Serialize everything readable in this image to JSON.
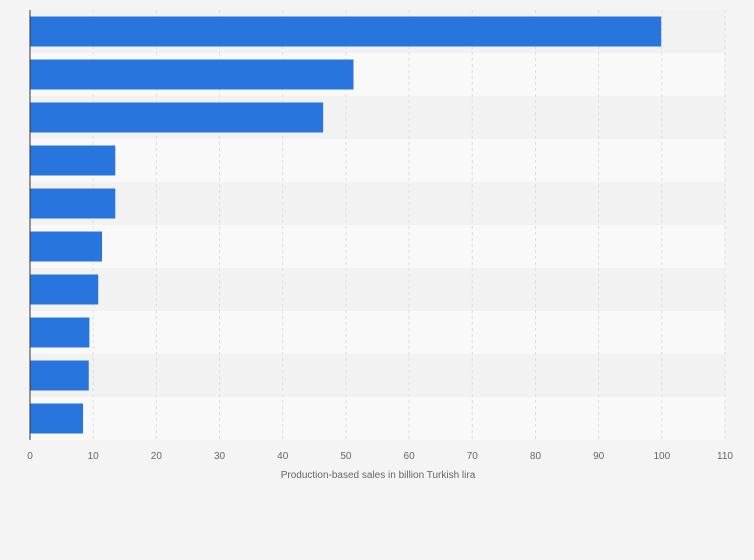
{
  "chart_data": {
    "type": "bar",
    "orientation": "horizontal",
    "categories": [
      "",
      "",
      "",
      "",
      "",
      "",
      "",
      "",
      "",
      ""
    ],
    "values": [
      99.9,
      51.2,
      46.4,
      13.5,
      13.5,
      11.4,
      10.8,
      9.4,
      9.3,
      8.4
    ],
    "xlabel": "Production-based sales in billion Turkish lira",
    "ylabel": "",
    "xlim": [
      0,
      110
    ],
    "xticks": [
      "0",
      "10",
      "20",
      "30",
      "40",
      "50",
      "60",
      "70",
      "80",
      "90",
      "100",
      "110"
    ],
    "grid": "vertical dashed",
    "legend": "none",
    "colors": {
      "bar": "#2876dd",
      "background": "#f4f4f4",
      "band_light": "#f9f9f9",
      "band_dark": "#f2f2f2",
      "grid": "#dcdcdc",
      "axis": "#333333",
      "text": "#666666"
    }
  }
}
